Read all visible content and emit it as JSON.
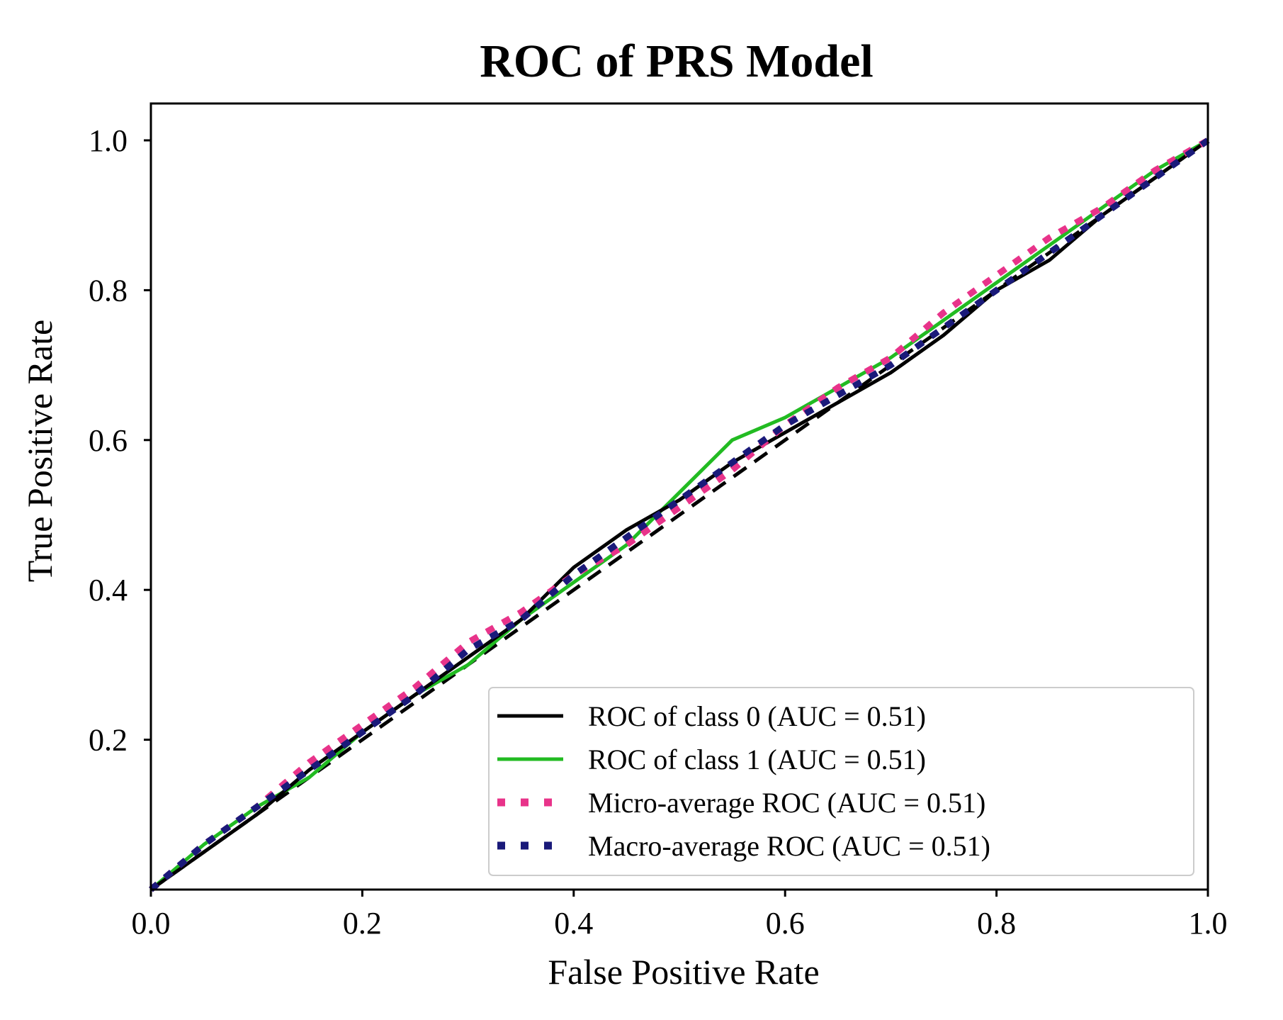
{
  "chart_data": {
    "type": "line",
    "title": "ROC of PRS Model",
    "xlabel": "False Positive Rate",
    "ylabel": "True Positive Rate",
    "xlim": [
      0.0,
      1.0
    ],
    "ylim": [
      0.0,
      1.05
    ],
    "x_ticks": [
      0.0,
      0.2,
      0.4,
      0.6,
      0.8,
      1.0
    ],
    "x_tick_labels": [
      "0.0",
      "0.2",
      "0.4",
      "0.6",
      "0.8",
      "1.0"
    ],
    "y_ticks": [
      0.2,
      0.4,
      0.6,
      0.8,
      1.0
    ],
    "y_tick_labels": [
      "0.2",
      "0.4",
      "0.6",
      "0.8",
      "1.0"
    ],
    "grid": false,
    "legend_position": "lower right",
    "series": [
      {
        "name": "ROC of class 0 (AUC = 0.51)",
        "color": "#000000",
        "style": "solid",
        "x": [
          0.0,
          0.05,
          0.1,
          0.15,
          0.2,
          0.25,
          0.3,
          0.35,
          0.4,
          0.45,
          0.5,
          0.55,
          0.6,
          0.65,
          0.7,
          0.75,
          0.8,
          0.85,
          0.9,
          0.95,
          1.0
        ],
        "y": [
          0.0,
          0.05,
          0.1,
          0.16,
          0.21,
          0.26,
          0.31,
          0.36,
          0.43,
          0.48,
          0.52,
          0.57,
          0.61,
          0.65,
          0.69,
          0.74,
          0.8,
          0.84,
          0.9,
          0.95,
          1.0
        ]
      },
      {
        "name": "ROC of class 1 (AUC = 0.51)",
        "color": "#22bb22",
        "style": "solid",
        "x": [
          0.0,
          0.05,
          0.1,
          0.15,
          0.2,
          0.25,
          0.3,
          0.35,
          0.4,
          0.45,
          0.5,
          0.55,
          0.6,
          0.65,
          0.7,
          0.75,
          0.8,
          0.85,
          0.9,
          0.95,
          1.0
        ],
        "y": [
          0.0,
          0.06,
          0.11,
          0.15,
          0.21,
          0.26,
          0.3,
          0.36,
          0.41,
          0.46,
          0.53,
          0.6,
          0.63,
          0.67,
          0.71,
          0.76,
          0.81,
          0.86,
          0.91,
          0.96,
          1.0
        ]
      },
      {
        "name": "Micro-average ROC (AUC = 0.51)",
        "color": "#e8338a",
        "style": "dotted",
        "x": [
          0.0,
          0.05,
          0.1,
          0.15,
          0.2,
          0.25,
          0.3,
          0.35,
          0.4,
          0.45,
          0.5,
          0.55,
          0.6,
          0.65,
          0.7,
          0.75,
          0.8,
          0.85,
          0.9,
          0.95,
          1.0
        ],
        "y": [
          0.0,
          0.06,
          0.11,
          0.17,
          0.22,
          0.27,
          0.33,
          0.37,
          0.42,
          0.46,
          0.51,
          0.56,
          0.62,
          0.67,
          0.71,
          0.77,
          0.82,
          0.87,
          0.91,
          0.96,
          1.0
        ]
      },
      {
        "name": "Macro-average ROC (AUC = 0.51)",
        "color": "#1a1a7a",
        "style": "dotted",
        "x": [
          0.0,
          0.05,
          0.1,
          0.15,
          0.2,
          0.25,
          0.3,
          0.35,
          0.4,
          0.45,
          0.5,
          0.55,
          0.6,
          0.65,
          0.7,
          0.75,
          0.8,
          0.85,
          0.9,
          0.95,
          1.0
        ],
        "y": [
          0.0,
          0.06,
          0.11,
          0.16,
          0.21,
          0.26,
          0.32,
          0.36,
          0.42,
          0.47,
          0.52,
          0.57,
          0.62,
          0.66,
          0.7,
          0.75,
          0.8,
          0.85,
          0.9,
          0.95,
          1.0
        ]
      },
      {
        "name": "",
        "color": "#000000",
        "style": "dashed",
        "x": [
          0.0,
          1.0
        ],
        "y": [
          0.0,
          1.0
        ]
      }
    ],
    "legend": [
      {
        "label": "ROC of class 0 (AUC = 0.51)",
        "color": "#000000",
        "style": "solid"
      },
      {
        "label": "ROC of class 1 (AUC = 0.51)",
        "color": "#22bb22",
        "style": "solid"
      },
      {
        "label": "Micro-average ROC (AUC = 0.51)",
        "color": "#e8338a",
        "style": "dotted"
      },
      {
        "label": "Macro-average ROC (AUC = 0.51)",
        "color": "#1a1a7a",
        "style": "dotted"
      }
    ]
  }
}
